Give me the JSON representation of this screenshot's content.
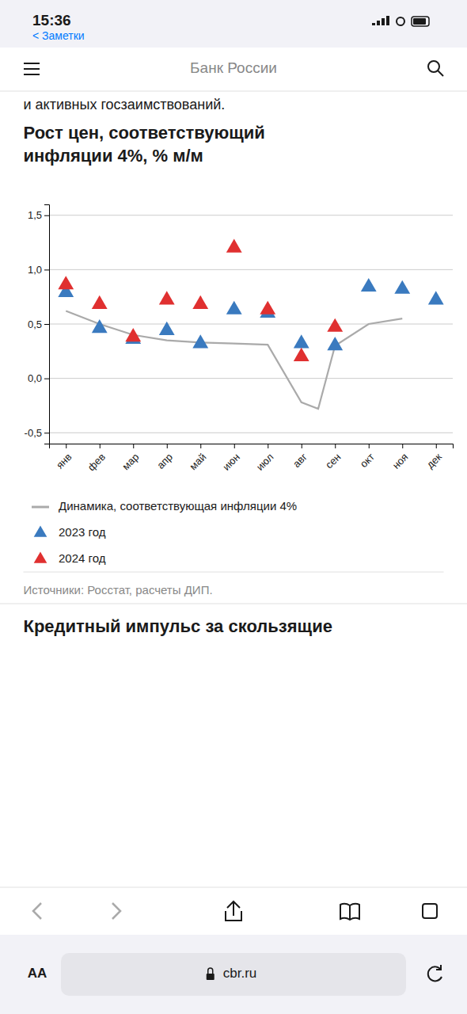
{
  "chart_data": {
    "type": "scatter",
    "title": "Рост цен, соответствующий\nинфляции 4%, % м/м",
    "categories": [
      "янв",
      "фев",
      "мар",
      "апр",
      "май",
      "июн",
      "июл",
      "авг",
      "сен",
      "окт",
      "ноя",
      "дек"
    ],
    "series": [
      {
        "name": "Динамика, соответствующая инфляции 4%",
        "type": "line",
        "line_style": "solid",
        "color": "#aaaaaa",
        "x": [
          0,
          1,
          2,
          3,
          4,
          5,
          6,
          7,
          7.5,
          8,
          9,
          10
        ],
        "values": [
          0.62,
          0.5,
          0.4,
          0.35,
          0.33,
          0.32,
          0.31,
          -0.22,
          -0.28,
          0.3,
          0.5,
          0.55
        ]
      },
      {
        "name": "2023 год",
        "type": "scatter",
        "marker": "triangle",
        "color": "#3a7abf",
        "values": [
          0.79,
          0.46,
          0.36,
          0.44,
          0.32,
          0.63,
          0.6,
          0.32,
          0.3,
          0.84,
          0.82,
          0.72
        ]
      },
      {
        "name": "2024 год",
        "type": "scatter",
        "marker": "triangle",
        "color": "#e03030",
        "values": [
          0.86,
          0.68,
          0.38,
          0.72,
          0.68,
          1.2,
          0.63,
          0.2,
          0.47,
          null,
          null,
          null
        ]
      }
    ],
    "ylim": [
      -0.6,
      1.6
    ],
    "yticks": [
      {
        "value": -0.5,
        "label": "-0,5"
      },
      {
        "value": 0.0,
        "label": "0,0"
      },
      {
        "value": 0.5,
        "label": "0,5"
      },
      {
        "value": 1.0,
        "label": "1,0"
      },
      {
        "value": 1.5,
        "label": "1,5"
      }
    ],
    "grid": true,
    "legend": "bottom"
  },
  "page": {
    "status_time": "15:36",
    "back_text": "< Заметки",
    "bank_name": "Банк России",
    "header_text": "и активных госзаимствований.",
    "source_text": "Источники: Росстат, расчеты ДИП.",
    "footer_title": "Кредитный импульс за скользящие",
    "browser_aa": "AA",
    "browser_url": "cbr.ru"
  }
}
